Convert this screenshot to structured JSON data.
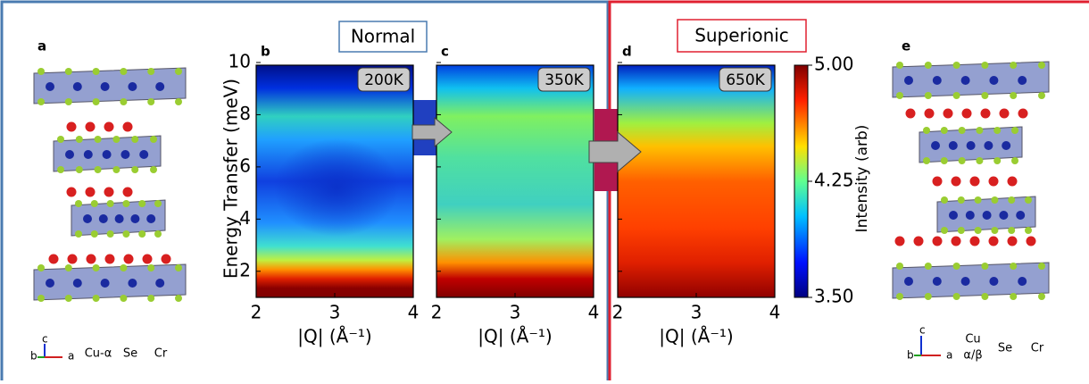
{
  "section_labels": [
    "Normal",
    "Superionic"
  ],
  "panel_letters": [
    "a",
    "b",
    "c",
    "d",
    "e"
  ],
  "heatmaps": [
    {
      "temperature": "200K"
    },
    {
      "temperature": "350K"
    },
    {
      "temperature": "650K"
    }
  ],
  "xlabel": "|Q| (Å⁻¹)",
  "ylabel": "Energy Transfer (meV)",
  "xlim": [
    2,
    4
  ],
  "xticks": [
    2,
    3,
    4
  ],
  "ylim": [
    1,
    10
  ],
  "yticks": [
    2,
    4,
    6,
    8,
    10
  ],
  "colorbar": {
    "label": "Intensity (arb)",
    "lim": [
      3.5,
      5
    ],
    "ticks": [
      {
        "value": 3.5,
        "label": "3.50"
      },
      {
        "value": 4.25,
        "label": "4.25"
      },
      {
        "value": 5,
        "label": "5.00"
      }
    ]
  },
  "legend_a": {
    "items": [
      "Cu-α",
      "Se",
      "Cr"
    ],
    "axes": [
      "c",
      "b",
      "a"
    ]
  },
  "legend_e": {
    "items": [
      "Cu",
      "α/β",
      "Se",
      "Cr"
    ],
    "axes": [
      "c",
      "b",
      "a"
    ]
  }
}
